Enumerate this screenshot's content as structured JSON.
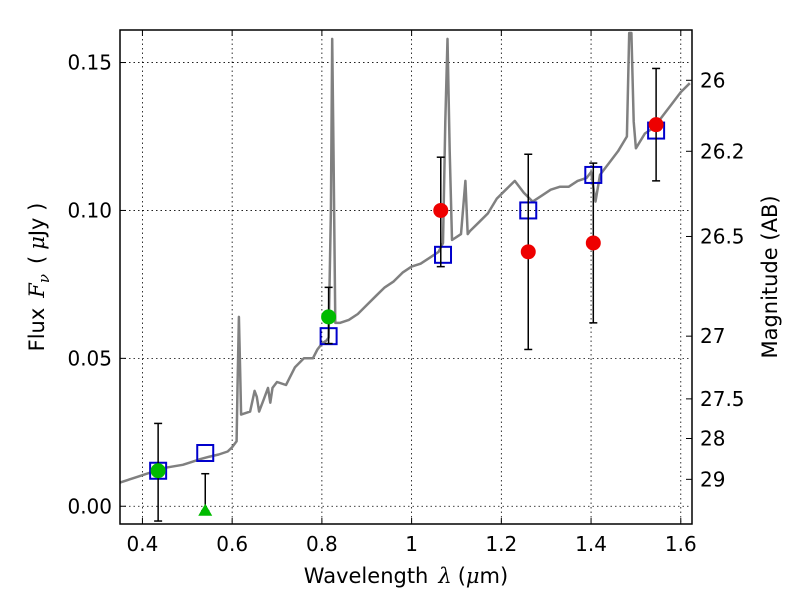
{
  "chart_data": {
    "type": "scatter",
    "title": "",
    "xlabel": {
      "text": "Wavelength",
      "symbol": "λ",
      "unit_open": "(",
      "unit_mu": "μ",
      "unit_rest": "m)"
    },
    "ylabel": {
      "text": "Flux",
      "symbol": "F",
      "subscript": "ν",
      "unit_open": "(",
      "unit_mu": "μ",
      "unit_rest": "Jy )"
    },
    "y2label": "Magnitude (AB)",
    "xlim": [
      0.35,
      1.625
    ],
    "ylim": [
      -0.006,
      0.161
    ],
    "grid": true,
    "x_ticks": [
      {
        "value": 0.4,
        "label": "0.4"
      },
      {
        "value": 0.6,
        "label": "0.6"
      },
      {
        "value": 0.8,
        "label": "0.8"
      },
      {
        "value": 1.0,
        "label": "1"
      },
      {
        "value": 1.2,
        "label": "1.2"
      },
      {
        "value": 1.4,
        "label": "1.4"
      },
      {
        "value": 1.6,
        "label": "1.6"
      }
    ],
    "y_ticks": [
      {
        "value": 0.0,
        "label": "0.00"
      },
      {
        "value": 0.05,
        "label": "0.05"
      },
      {
        "value": 0.1,
        "label": "0.10"
      },
      {
        "value": 0.15,
        "label": "0.15"
      }
    ],
    "y2_ticks": [
      {
        "flux": 0.144,
        "label": "26"
      },
      {
        "flux": 0.12,
        "label": "26.2"
      },
      {
        "flux": 0.0912,
        "label": "26.5"
      },
      {
        "flux": 0.0575,
        "label": "27"
      },
      {
        "flux": 0.0363,
        "label": "27.5"
      },
      {
        "flux": 0.0229,
        "label": "28"
      },
      {
        "flux": 0.0091,
        "label": "29"
      }
    ],
    "series": [
      {
        "marker": "line",
        "color": "#808080",
        "points": [
          [
            0.35,
            0.008
          ],
          [
            0.37,
            0.009
          ],
          [
            0.39,
            0.01
          ],
          [
            0.41,
            0.011
          ],
          [
            0.43,
            0.012
          ],
          [
            0.45,
            0.013
          ],
          [
            0.47,
            0.0135
          ],
          [
            0.49,
            0.014
          ],
          [
            0.51,
            0.015
          ],
          [
            0.53,
            0.016
          ],
          [
            0.55,
            0.0168
          ],
          [
            0.57,
            0.0175
          ],
          [
            0.59,
            0.0185
          ],
          [
            0.6,
            0.02
          ],
          [
            0.61,
            0.022
          ],
          [
            0.612,
            0.04
          ],
          [
            0.615,
            0.064
          ],
          [
            0.618,
            0.045
          ],
          [
            0.62,
            0.031
          ],
          [
            0.64,
            0.032
          ],
          [
            0.65,
            0.039
          ],
          [
            0.655,
            0.037
          ],
          [
            0.66,
            0.032
          ],
          [
            0.67,
            0.036
          ],
          [
            0.68,
            0.04
          ],
          [
            0.685,
            0.035
          ],
          [
            0.69,
            0.04
          ],
          [
            0.7,
            0.042
          ],
          [
            0.72,
            0.041
          ],
          [
            0.74,
            0.047
          ],
          [
            0.76,
            0.05
          ],
          [
            0.78,
            0.05
          ],
          [
            0.79,
            0.053
          ],
          [
            0.8,
            0.055
          ],
          [
            0.81,
            0.056
          ],
          [
            0.815,
            0.057
          ],
          [
            0.82,
            0.1
          ],
          [
            0.823,
            0.158
          ],
          [
            0.826,
            0.12
          ],
          [
            0.83,
            0.062
          ],
          [
            0.84,
            0.062
          ],
          [
            0.86,
            0.063
          ],
          [
            0.88,
            0.065
          ],
          [
            0.9,
            0.068
          ],
          [
            0.92,
            0.071
          ],
          [
            0.94,
            0.074
          ],
          [
            0.96,
            0.076
          ],
          [
            0.98,
            0.079
          ],
          [
            1.0,
            0.081
          ],
          [
            1.02,
            0.082
          ],
          [
            1.04,
            0.084
          ],
          [
            1.06,
            0.086
          ],
          [
            1.07,
            0.089
          ],
          [
            1.075,
            0.13
          ],
          [
            1.08,
            0.158
          ],
          [
            1.085,
            0.12
          ],
          [
            1.09,
            0.09
          ],
          [
            1.1,
            0.091
          ],
          [
            1.11,
            0.092
          ],
          [
            1.12,
            0.11
          ],
          [
            1.125,
            0.092
          ],
          [
            1.13,
            0.093
          ],
          [
            1.15,
            0.096
          ],
          [
            1.17,
            0.099
          ],
          [
            1.19,
            0.104
          ],
          [
            1.21,
            0.107
          ],
          [
            1.23,
            0.11
          ],
          [
            1.25,
            0.106
          ],
          [
            1.27,
            0.103
          ],
          [
            1.29,
            0.105
          ],
          [
            1.31,
            0.107
          ],
          [
            1.33,
            0.108
          ],
          [
            1.35,
            0.108
          ],
          [
            1.37,
            0.11
          ],
          [
            1.39,
            0.111
          ],
          [
            1.4,
            0.113
          ],
          [
            1.41,
            0.103
          ],
          [
            1.42,
            0.112
          ],
          [
            1.44,
            0.116
          ],
          [
            1.46,
            0.12
          ],
          [
            1.48,
            0.125
          ],
          [
            1.485,
            0.16
          ],
          [
            1.49,
            0.16
          ],
          [
            1.495,
            0.13
          ],
          [
            1.5,
            0.121
          ],
          [
            1.52,
            0.126
          ],
          [
            1.54,
            0.128
          ],
          [
            1.56,
            0.132
          ],
          [
            1.58,
            0.136
          ],
          [
            1.6,
            0.14
          ],
          [
            1.62,
            0.143
          ]
        ]
      },
      {
        "marker": "open-square",
        "color": "#0000cc",
        "points": [
          [
            0.435,
            0.012
          ],
          [
            0.54,
            0.018
          ],
          [
            0.815,
            0.0575
          ],
          [
            1.07,
            0.085
          ],
          [
            1.26,
            0.1
          ],
          [
            1.405,
            0.112
          ],
          [
            1.545,
            0.127
          ]
        ]
      },
      {
        "marker": "filled-circle",
        "color": "#00bb00",
        "points": [
          [
            0.435,
            0.012,
            0.028,
            -0.005
          ],
          [
            0.815,
            0.064,
            0.074,
            0.055
          ]
        ]
      },
      {
        "marker": "filled-circle",
        "color": "#ee0000",
        "points": [
          [
            1.065,
            0.1,
            0.118,
            0.081
          ],
          [
            1.26,
            0.086,
            0.119,
            0.053
          ],
          [
            1.405,
            0.089,
            0.116,
            0.062
          ],
          [
            1.545,
            0.129,
            0.148,
            0.11
          ]
        ]
      },
      {
        "marker": "filled-triangle",
        "color": "#00bb00",
        "points": [
          [
            0.54,
            -0.0015,
            0.011,
            -0.0015
          ]
        ]
      }
    ]
  }
}
